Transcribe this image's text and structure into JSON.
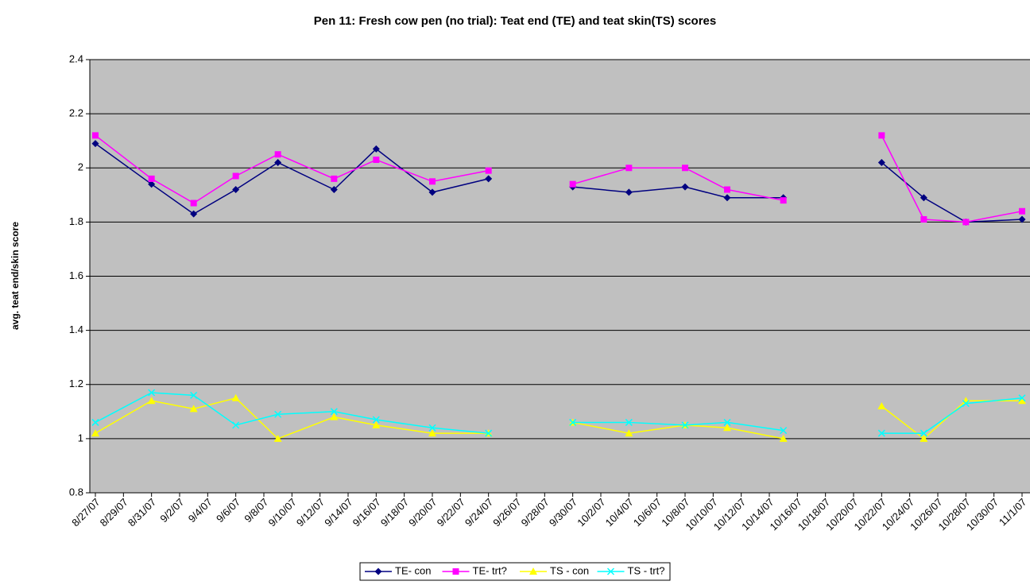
{
  "chart_data": {
    "type": "line",
    "title": "Pen 11: Fresh cow pen (no trial): Teat end (TE) and teat skin(TS) scores",
    "y_label": "avg. teat end/skin score",
    "x": [
      "8/27/07",
      "8/31/07",
      "9/3/07",
      "9/6/07",
      "9/9/07",
      "9/13/07",
      "9/16/07",
      "9/20/07",
      "9/24/07",
      "9/28/07",
      "9/30/07",
      "10/4/07",
      "10/8/07",
      "10/11/07",
      "10/15/07",
      "10/18/07",
      "10/22/07",
      "10/25/07",
      "10/28/07",
      "11/1/07"
    ],
    "series": [
      {
        "name": "TE- con",
        "color": "#000080",
        "marker": "diamond",
        "values": [
          2.09,
          1.94,
          1.83,
          1.92,
          2.02,
          1.92,
          2.07,
          1.91,
          1.96,
          null,
          1.93,
          1.91,
          1.93,
          1.89,
          1.89,
          null,
          2.02,
          1.89,
          1.8,
          1.81
        ]
      },
      {
        "name": "TE- trt?",
        "color": "#ff00ff",
        "marker": "square",
        "values": [
          2.12,
          1.96,
          1.87,
          1.97,
          2.05,
          1.96,
          2.03,
          1.95,
          1.99,
          null,
          1.94,
          2.0,
          2.0,
          1.92,
          1.88,
          null,
          2.12,
          1.81,
          1.8,
          1.84
        ]
      },
      {
        "name": "TS - con",
        "color": "#ffff00",
        "marker": "triangle",
        "values": [
          1.02,
          1.14,
          1.11,
          1.15,
          1.0,
          1.08,
          1.05,
          1.02,
          1.02,
          null,
          1.06,
          1.02,
          1.05,
          1.04,
          1.0,
          null,
          1.12,
          1.0,
          1.14,
          1.14
        ]
      },
      {
        "name": "TS - trt?",
        "color": "#00ffff",
        "marker": "x",
        "values": [
          1.06,
          1.17,
          1.16,
          1.05,
          1.09,
          1.1,
          1.07,
          1.04,
          1.02,
          null,
          1.06,
          1.06,
          1.05,
          1.06,
          1.03,
          null,
          1.02,
          1.02,
          1.13,
          1.15
        ]
      }
    ],
    "xlim": [
      "8/27/07",
      "11/1/07"
    ],
    "xticks": [
      "8/27/07",
      "8/29/07",
      "8/31/07",
      "9/2/07",
      "9/4/07",
      "9/6/07",
      "9/8/07",
      "9/10/07",
      "9/12/07",
      "9/14/07",
      "9/16/07",
      "9/18/07",
      "9/20/07",
      "9/22/07",
      "9/24/07",
      "9/26/07",
      "9/28/07",
      "9/30/07",
      "10/2/07",
      "10/4/07",
      "10/6/07",
      "10/8/07",
      "10/10/07",
      "10/12/07",
      "10/14/07",
      "10/16/07",
      "10/18/07",
      "10/20/07",
      "10/22/07",
      "10/24/07",
      "10/26/07",
      "10/28/07",
      "10/30/07",
      "11/1/07"
    ],
    "ylim": [
      0.8,
      2.4
    ],
    "yticks": [
      0.8,
      1,
      1.2,
      1.4,
      1.6,
      1.8,
      2,
      2.2,
      2.4
    ],
    "grid": true,
    "legend": "bottom"
  }
}
